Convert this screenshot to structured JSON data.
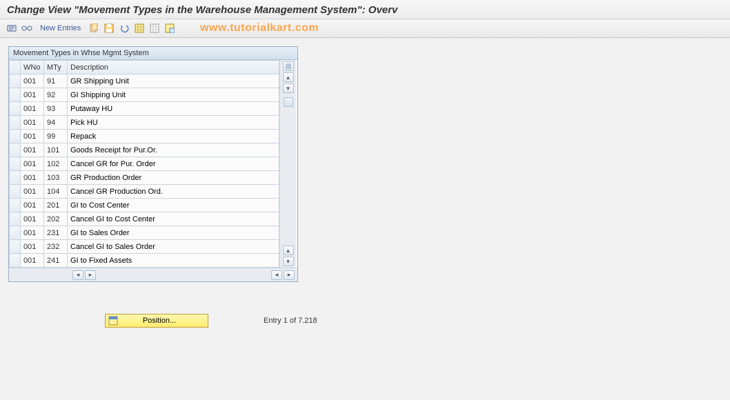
{
  "title": "Change View \"Movement Types in the Warehouse Management System\": Overv",
  "toolbar": {
    "new_entries": "New Entries"
  },
  "watermark": "www.tutorialkart.com",
  "panel": {
    "title": "Movement Types in Whse Mgmt System",
    "columns": {
      "wno": "WNo",
      "mty": "MTy",
      "desc": "Description"
    },
    "rows": [
      {
        "wno": "001",
        "mty": "91",
        "desc": "GR Shipping Unit"
      },
      {
        "wno": "001",
        "mty": "92",
        "desc": "GI Shipping Unit"
      },
      {
        "wno": "001",
        "mty": "93",
        "desc": "Putaway HU"
      },
      {
        "wno": "001",
        "mty": "94",
        "desc": "Pick HU"
      },
      {
        "wno": "001",
        "mty": "99",
        "desc": "Repack"
      },
      {
        "wno": "001",
        "mty": "101",
        "desc": "Goods Receipt for Pur.Or."
      },
      {
        "wno": "001",
        "mty": "102",
        "desc": "Cancel GR for Pur. Order"
      },
      {
        "wno": "001",
        "mty": "103",
        "desc": "GR Production Order"
      },
      {
        "wno": "001",
        "mty": "104",
        "desc": "Cancel GR Production Ord."
      },
      {
        "wno": "001",
        "mty": "201",
        "desc": "GI to Cost Center"
      },
      {
        "wno": "001",
        "mty": "202",
        "desc": "Cancel GI to Cost Center"
      },
      {
        "wno": "001",
        "mty": "231",
        "desc": "GI to Sales Order"
      },
      {
        "wno": "001",
        "mty": "232",
        "desc": "Cancel GI to Sales Order"
      },
      {
        "wno": "001",
        "mty": "241",
        "desc": "GI to Fixed Assets"
      }
    ]
  },
  "footer": {
    "position_label": "Position...",
    "entry_text": "Entry 1 of 7.218"
  },
  "colors": {
    "accent_blue": "#3a5a9a",
    "panel_border": "#9baec8",
    "watermark": "#ff9933",
    "button_yellow": "#ffec70"
  }
}
